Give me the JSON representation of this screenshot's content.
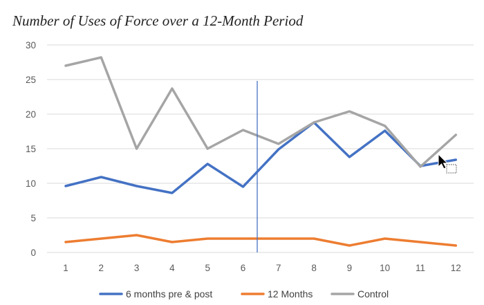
{
  "chart_data": {
    "type": "line",
    "title": "Number of Uses of Force over a 12-Month Period",
    "xlabel": "",
    "ylabel": "",
    "x": [
      1,
      2,
      3,
      4,
      5,
      6,
      7,
      8,
      9,
      10,
      11,
      12
    ],
    "x_tick_labels": [
      "1",
      "2",
      "3",
      "4",
      "5",
      "6",
      "7",
      "8",
      "9",
      "10",
      "11",
      "12"
    ],
    "ylim": [
      0,
      30
    ],
    "y_ticks": [
      0,
      5,
      10,
      15,
      20,
      25,
      30
    ],
    "y_tick_labels": [
      "0",
      "5",
      "10",
      "15",
      "20",
      "25",
      "30"
    ],
    "grid": true,
    "legend_position": "bottom",
    "vertical_marker_x": 6.4,
    "vertical_marker_color": "#4472C4",
    "series": [
      {
        "name": "6 months pre & post",
        "color": "#4472C4",
        "values": [
          9.6,
          10.9,
          9.6,
          8.6,
          12.8,
          9.5,
          14.9,
          18.8,
          13.8,
          17.6,
          12.5,
          13.4
        ]
      },
      {
        "name": "12 Months",
        "color": "#ED7D31",
        "values": [
          1.5,
          2.0,
          2.5,
          1.5,
          2.0,
          2.0,
          2.0,
          2.0,
          1.0,
          2.0,
          1.5,
          1.0
        ]
      },
      {
        "name": "Control",
        "color": "#A5A5A5",
        "values": [
          27.0,
          28.2,
          15.0,
          23.7,
          15.0,
          17.7,
          15.7,
          18.8,
          20.4,
          18.3,
          12.4,
          17.0
        ]
      }
    ]
  }
}
